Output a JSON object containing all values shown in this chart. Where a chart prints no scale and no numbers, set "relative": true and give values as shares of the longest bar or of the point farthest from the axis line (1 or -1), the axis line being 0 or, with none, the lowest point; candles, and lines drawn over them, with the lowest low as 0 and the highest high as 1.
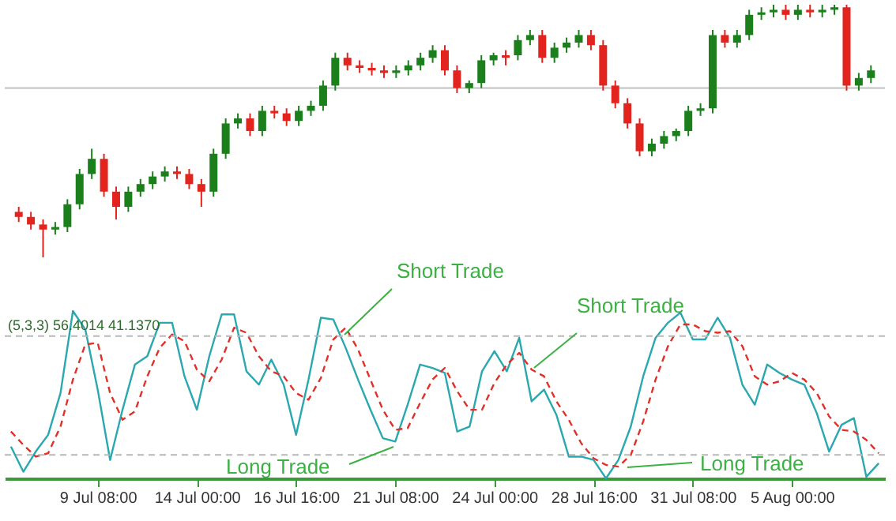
{
  "chart_data": [
    {
      "type": "candlestick",
      "relative": true,
      "categories": [
        null,
        null,
        null,
        null,
        null,
        null,
        null,
        null,
        null,
        null,
        null,
        null,
        null,
        null,
        null,
        null,
        null,
        null,
        null,
        null,
        null,
        null,
        null,
        null,
        null,
        null,
        null,
        null,
        null,
        null,
        null,
        null,
        null,
        null,
        null,
        null,
        null,
        null,
        null,
        null,
        null,
        null,
        null,
        null,
        null,
        null,
        null,
        null,
        null,
        null,
        null,
        null,
        null,
        null,
        null,
        null,
        null,
        null,
        null,
        null,
        null,
        null,
        null,
        null,
        null,
        null,
        null,
        null,
        null,
        null,
        null
      ],
      "ohlc": [
        [
          0.18,
          0.2,
          0.14,
          0.16
        ],
        [
          0.16,
          0.18,
          0.11,
          0.13
        ],
        [
          0.13,
          0.15,
          0,
          0.11
        ],
        [
          0.11,
          0.14,
          0.09,
          0.12
        ],
        [
          0.12,
          0.23,
          0.1,
          0.21
        ],
        [
          0.21,
          0.35,
          0.19,
          0.33
        ],
        [
          0.33,
          0.43,
          0.31,
          0.39
        ],
        [
          0.39,
          0.41,
          0.24,
          0.26
        ],
        [
          0.26,
          0.28,
          0.15,
          0.2
        ],
        [
          0.2,
          0.28,
          0.18,
          0.26
        ],
        [
          0.26,
          0.31,
          0.24,
          0.29
        ],
        [
          0.29,
          0.34,
          0.27,
          0.32
        ],
        [
          0.32,
          0.36,
          0.3,
          0.34
        ],
        [
          0.34,
          0.36,
          0.31,
          0.33
        ],
        [
          0.33,
          0.35,
          0.27,
          0.29
        ],
        [
          0.29,
          0.31,
          0.2,
          0.26
        ],
        [
          0.26,
          0.43,
          0.24,
          0.41
        ],
        [
          0.41,
          0.55,
          0.39,
          0.53
        ],
        [
          0.53,
          0.57,
          0.51,
          0.55
        ],
        [
          0.55,
          0.57,
          0.48,
          0.5
        ],
        [
          0.5,
          0.6,
          0.48,
          0.58
        ],
        [
          0.58,
          0.6,
          0.55,
          0.57
        ],
        [
          0.57,
          0.59,
          0.52,
          0.54
        ],
        [
          0.54,
          0.6,
          0.52,
          0.58
        ],
        [
          0.58,
          0.62,
          0.56,
          0.6
        ],
        [
          0.6,
          0.7,
          0.58,
          0.68
        ],
        [
          0.68,
          0.81,
          0.66,
          0.79
        ],
        [
          0.79,
          0.81,
          0.74,
          0.76
        ],
        [
          0.76,
          0.78,
          0.73,
          0.75
        ],
        [
          0.75,
          0.77,
          0.72,
          0.74
        ],
        [
          0.74,
          0.76,
          0.71,
          0.73
        ],
        [
          0.73,
          0.76,
          0.71,
          0.74
        ],
        [
          0.74,
          0.78,
          0.72,
          0.76
        ],
        [
          0.76,
          0.81,
          0.74,
          0.79
        ],
        [
          0.79,
          0.84,
          0.77,
          0.82
        ],
        [
          0.82,
          0.84,
          0.72,
          0.74
        ],
        [
          0.74,
          0.76,
          0.65,
          0.67
        ],
        [
          0.67,
          0.7,
          0.65,
          0.69
        ],
        [
          0.69,
          0.8,
          0.67,
          0.78
        ],
        [
          0.78,
          0.81,
          0.76,
          0.8
        ],
        [
          0.8,
          0.82,
          0.76,
          0.79
        ],
        [
          0.8,
          0.88,
          0.78,
          0.86
        ],
        [
          0.86,
          0.9,
          0.84,
          0.88
        ],
        [
          0.88,
          0.9,
          0.77,
          0.79
        ],
        [
          0.79,
          0.85,
          0.77,
          0.83
        ],
        [
          0.83,
          0.87,
          0.81,
          0.85
        ],
        [
          0.85,
          0.9,
          0.83,
          0.88
        ],
        [
          0.88,
          0.9,
          0.82,
          0.84
        ],
        [
          0.84,
          0.86,
          0.66,
          0.68
        ],
        [
          0.68,
          0.7,
          0.59,
          0.61
        ],
        [
          0.61,
          0.63,
          0.51,
          0.53
        ],
        [
          0.53,
          0.55,
          0.4,
          0.42
        ],
        [
          0.42,
          0.47,
          0.4,
          0.45
        ],
        [
          0.45,
          0.5,
          0.43,
          0.48
        ],
        [
          0.48,
          0.51,
          0.46,
          0.5
        ],
        [
          0.5,
          0.6,
          0.48,
          0.58
        ],
        [
          0.58,
          0.61,
          0.56,
          0.59
        ],
        [
          0.59,
          0.9,
          0.57,
          0.88
        ],
        [
          0.88,
          0.9,
          0.83,
          0.85
        ],
        [
          0.85,
          0.9,
          0.83,
          0.88
        ],
        [
          0.88,
          0.98,
          0.86,
          0.96
        ],
        [
          0.96,
          0.99,
          0.94,
          0.97
        ],
        [
          0.97,
          1,
          0.95,
          0.98
        ],
        [
          0.98,
          1,
          0.94,
          0.96
        ],
        [
          0.96,
          1,
          0.94,
          0.98
        ],
        [
          0.98,
          1,
          0.95,
          0.97
        ],
        [
          0.97,
          1,
          0.95,
          0.98
        ],
        [
          0.98,
          1,
          0.96,
          0.99
        ],
        [
          0.99,
          1,
          0.66,
          0.68
        ],
        [
          0.68,
          0.73,
          0.66,
          0.71
        ],
        [
          0.71,
          0.76,
          0.69,
          0.74
        ]
      ],
      "ref_lines": [
        {
          "axis": "y",
          "value": 0.67,
          "color": "#c0c0c0",
          "line_style": "solid"
        }
      ]
    },
    {
      "type": "line",
      "relative": true,
      "tick_labels": "x",
      "marker": "none",
      "categories": [
        null,
        null,
        null,
        null,
        null,
        null,
        null,
        "9 Jul 08:00",
        null,
        null,
        null,
        null,
        null,
        null,
        null,
        "14 Jul 00:00",
        null,
        null,
        null,
        null,
        null,
        null,
        null,
        "16 Jul 16:00",
        null,
        null,
        null,
        null,
        null,
        null,
        null,
        "21 Jul 08:00",
        null,
        null,
        null,
        null,
        null,
        null,
        null,
        "24 Jul 00:00",
        null,
        null,
        null,
        null,
        null,
        null,
        null,
        "28 Jul 16:00",
        null,
        null,
        null,
        null,
        null,
        null,
        null,
        "31 Jul 08:00",
        null,
        null,
        null,
        null,
        null,
        null,
        null,
        "5 Aug 00:00",
        null,
        null,
        null,
        null,
        null,
        null,
        null
      ],
      "series": [
        {
          "color": "#2aa8b0",
          "line_style": "solid",
          "values": [
            0.19,
            0.04,
            0.16,
            0.26,
            0.51,
            1,
            0.89,
            0.53,
            0.11,
            0.41,
            0.68,
            0.73,
            0.93,
            0.93,
            0.61,
            0.41,
            0.73,
            0.98,
            0.98,
            0.64,
            0.56,
            0.71,
            0.56,
            0.26,
            0.59,
            0.96,
            0.95,
            0.78,
            0.59,
            0.41,
            0.24,
            0.22,
            0.44,
            0.68,
            0.66,
            0.63,
            0.28,
            0.31,
            0.64,
            0.76,
            0.64,
            0.84,
            0.46,
            0.53,
            0.38,
            0.13,
            0.13,
            0.11,
            0,
            0.11,
            0.31,
            0.61,
            0.84,
            0.93,
            0.99,
            0.83,
            0.83,
            0.96,
            0.84,
            0.56,
            0.44,
            0.68,
            0.63,
            0.59,
            0.56,
            0.39,
            0.16,
            0.32,
            0.36,
            0.01,
            0.09
          ]
        },
        {
          "color": "#e0302a",
          "line_style": "dashed",
          "values": [
            0.28,
            0.2,
            0.13,
            0.15,
            0.31,
            0.59,
            0.8,
            0.81,
            0.51,
            0.35,
            0.4,
            0.61,
            0.78,
            0.86,
            0.82,
            0.65,
            0.58,
            0.71,
            0.9,
            0.87,
            0.73,
            0.64,
            0.61,
            0.51,
            0.47,
            0.6,
            0.83,
            0.9,
            0.77,
            0.59,
            0.41,
            0.29,
            0.3,
            0.45,
            0.59,
            0.66,
            0.52,
            0.41,
            0.41,
            0.57,
            0.68,
            0.75,
            0.65,
            0.61,
            0.46,
            0.35,
            0.21,
            0.12,
            0.08,
            0.07,
            0.14,
            0.34,
            0.59,
            0.79,
            0.92,
            0.92,
            0.88,
            0.87,
            0.88,
            0.79,
            0.61,
            0.56,
            0.58,
            0.63,
            0.59,
            0.51,
            0.37,
            0.29,
            0.28,
            0.23,
            0.15
          ]
        }
      ],
      "ref_lines": [
        {
          "axis": "y",
          "value": 0.85,
          "color": "#b8b8b8",
          "line_style": "dashed"
        },
        {
          "axis": "y",
          "value": 0.14,
          "color": "#b8b8b8",
          "line_style": "dashed"
        }
      ],
      "annotations": [
        "(5,3,3) 56.4014 41.1370",
        "Short Trade",
        "Short Trade",
        "Long Trade",
        "Long Trade"
      ]
    }
  ]
}
